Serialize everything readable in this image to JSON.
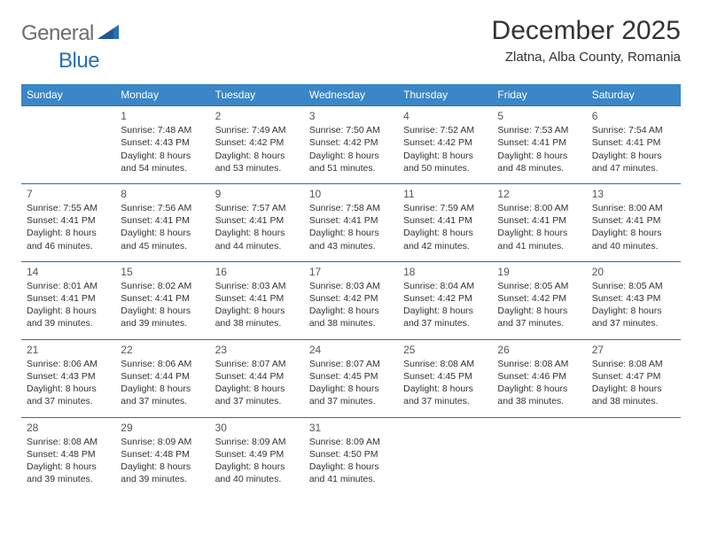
{
  "logo": {
    "word1": "General",
    "word2": "Blue"
  },
  "title": "December 2025",
  "location": "Zlatna, Alba County, Romania",
  "header_bg": "#3b86c6",
  "row_border": "#2a6fb4",
  "days": [
    "Sunday",
    "Monday",
    "Tuesday",
    "Wednesday",
    "Thursday",
    "Friday",
    "Saturday"
  ],
  "weeks": [
    [
      null,
      {
        "n": "1",
        "sr": "7:48 AM",
        "ss": "4:43 PM",
        "dl": "8 hours and 54 minutes."
      },
      {
        "n": "2",
        "sr": "7:49 AM",
        "ss": "4:42 PM",
        "dl": "8 hours and 53 minutes."
      },
      {
        "n": "3",
        "sr": "7:50 AM",
        "ss": "4:42 PM",
        "dl": "8 hours and 51 minutes."
      },
      {
        "n": "4",
        "sr": "7:52 AM",
        "ss": "4:42 PM",
        "dl": "8 hours and 50 minutes."
      },
      {
        "n": "5",
        "sr": "7:53 AM",
        "ss": "4:41 PM",
        "dl": "8 hours and 48 minutes."
      },
      {
        "n": "6",
        "sr": "7:54 AM",
        "ss": "4:41 PM",
        "dl": "8 hours and 47 minutes."
      }
    ],
    [
      {
        "n": "7",
        "sr": "7:55 AM",
        "ss": "4:41 PM",
        "dl": "8 hours and 46 minutes."
      },
      {
        "n": "8",
        "sr": "7:56 AM",
        "ss": "4:41 PM",
        "dl": "8 hours and 45 minutes."
      },
      {
        "n": "9",
        "sr": "7:57 AM",
        "ss": "4:41 PM",
        "dl": "8 hours and 44 minutes."
      },
      {
        "n": "10",
        "sr": "7:58 AM",
        "ss": "4:41 PM",
        "dl": "8 hours and 43 minutes."
      },
      {
        "n": "11",
        "sr": "7:59 AM",
        "ss": "4:41 PM",
        "dl": "8 hours and 42 minutes."
      },
      {
        "n": "12",
        "sr": "8:00 AM",
        "ss": "4:41 PM",
        "dl": "8 hours and 41 minutes."
      },
      {
        "n": "13",
        "sr": "8:00 AM",
        "ss": "4:41 PM",
        "dl": "8 hours and 40 minutes."
      }
    ],
    [
      {
        "n": "14",
        "sr": "8:01 AM",
        "ss": "4:41 PM",
        "dl": "8 hours and 39 minutes."
      },
      {
        "n": "15",
        "sr": "8:02 AM",
        "ss": "4:41 PM",
        "dl": "8 hours and 39 minutes."
      },
      {
        "n": "16",
        "sr": "8:03 AM",
        "ss": "4:41 PM",
        "dl": "8 hours and 38 minutes."
      },
      {
        "n": "17",
        "sr": "8:03 AM",
        "ss": "4:42 PM",
        "dl": "8 hours and 38 minutes."
      },
      {
        "n": "18",
        "sr": "8:04 AM",
        "ss": "4:42 PM",
        "dl": "8 hours and 37 minutes."
      },
      {
        "n": "19",
        "sr": "8:05 AM",
        "ss": "4:42 PM",
        "dl": "8 hours and 37 minutes."
      },
      {
        "n": "20",
        "sr": "8:05 AM",
        "ss": "4:43 PM",
        "dl": "8 hours and 37 minutes."
      }
    ],
    [
      {
        "n": "21",
        "sr": "8:06 AM",
        "ss": "4:43 PM",
        "dl": "8 hours and 37 minutes."
      },
      {
        "n": "22",
        "sr": "8:06 AM",
        "ss": "4:44 PM",
        "dl": "8 hours and 37 minutes."
      },
      {
        "n": "23",
        "sr": "8:07 AM",
        "ss": "4:44 PM",
        "dl": "8 hours and 37 minutes."
      },
      {
        "n": "24",
        "sr": "8:07 AM",
        "ss": "4:45 PM",
        "dl": "8 hours and 37 minutes."
      },
      {
        "n": "25",
        "sr": "8:08 AM",
        "ss": "4:45 PM",
        "dl": "8 hours and 37 minutes."
      },
      {
        "n": "26",
        "sr": "8:08 AM",
        "ss": "4:46 PM",
        "dl": "8 hours and 38 minutes."
      },
      {
        "n": "27",
        "sr": "8:08 AM",
        "ss": "4:47 PM",
        "dl": "8 hours and 38 minutes."
      }
    ],
    [
      {
        "n": "28",
        "sr": "8:08 AM",
        "ss": "4:48 PM",
        "dl": "8 hours and 39 minutes."
      },
      {
        "n": "29",
        "sr": "8:09 AM",
        "ss": "4:48 PM",
        "dl": "8 hours and 39 minutes."
      },
      {
        "n": "30",
        "sr": "8:09 AM",
        "ss": "4:49 PM",
        "dl": "8 hours and 40 minutes."
      },
      {
        "n": "31",
        "sr": "8:09 AM",
        "ss": "4:50 PM",
        "dl": "8 hours and 41 minutes."
      },
      null,
      null,
      null
    ]
  ],
  "labels": {
    "sunrise": "Sunrise:",
    "sunset": "Sunset:",
    "daylight": "Daylight:"
  }
}
